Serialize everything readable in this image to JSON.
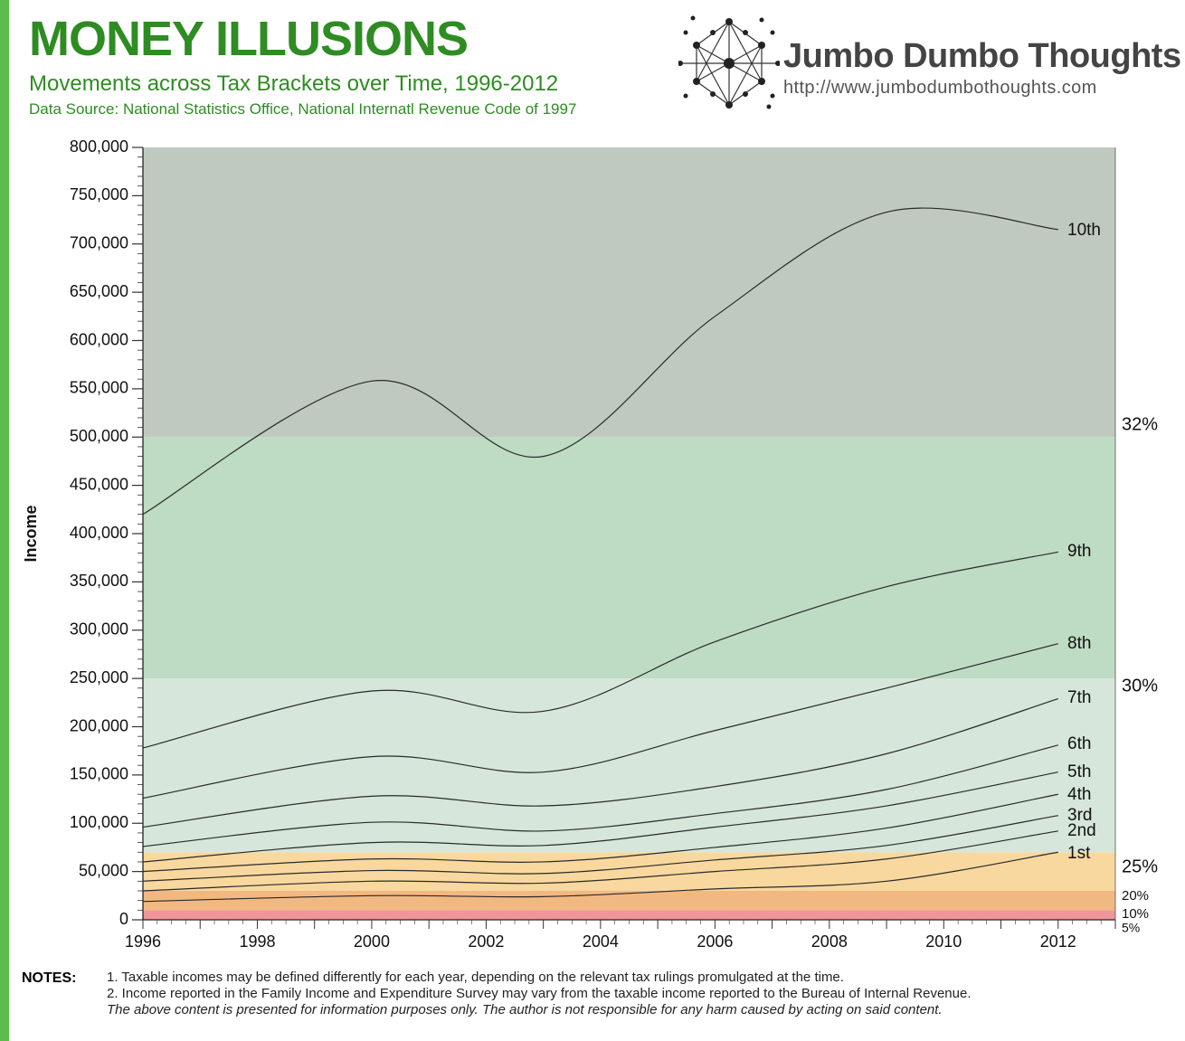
{
  "theme": {
    "accent": "#5cbd4f",
    "title_color": "#2e8c22",
    "text_color": "#111111"
  },
  "header": {
    "title": "MONEY ILLUSIONS",
    "subtitle": "Movements across Tax Brackets over Time, 1996-2012",
    "source": "Data Source: National Statistics Office, National Internatl Revenue Code of 1997"
  },
  "brand": {
    "name": "Jumbo Dumbo Thoughts",
    "url": "http://www.jumbodumbothoughts.com",
    "logo_icon": "network-dots-icon"
  },
  "chart_data": {
    "type": "line",
    "ylabel": "Income",
    "xlabel": "",
    "xlim": [
      1996,
      2013
    ],
    "ylim": [
      0,
      800000
    ],
    "x_ticks": [
      "1996",
      "1998",
      "2000",
      "2002",
      "2004",
      "2006",
      "2008",
      "2010",
      "2012"
    ],
    "y_ticks": [
      "0",
      "50,000",
      "100,000",
      "150,000",
      "200,000",
      "250,000",
      "300,000",
      "350,000",
      "400,000",
      "450,000",
      "500,000",
      "550,000",
      "600,000",
      "650,000",
      "700,000",
      "750,000",
      "800,000"
    ],
    "x": [
      1996,
      2000,
      2003,
      2006,
      2009,
      2012
    ],
    "series": [
      {
        "name": "1st",
        "values": [
          19000,
          25000,
          24000,
          32000,
          40000,
          70000
        ]
      },
      {
        "name": "2nd",
        "values": [
          30000,
          40000,
          38000,
          50000,
          63000,
          92000
        ]
      },
      {
        "name": "3rd",
        "values": [
          40000,
          51000,
          48000,
          62000,
          77000,
          108000
        ]
      },
      {
        "name": "4th",
        "values": [
          50000,
          63000,
          60000,
          75000,
          95000,
          130000
        ]
      },
      {
        "name": "5th",
        "values": [
          60000,
          80000,
          77000,
          96000,
          118000,
          153000
        ]
      },
      {
        "name": "6th",
        "values": [
          76000,
          101000,
          92000,
          110000,
          135000,
          181000
        ]
      },
      {
        "name": "7th",
        "values": [
          96000,
          128000,
          118000,
          138000,
          172000,
          229000
        ]
      },
      {
        "name": "8th",
        "values": [
          126000,
          169000,
          153000,
          196000,
          240000,
          286000
        ]
      },
      {
        "name": "9th",
        "values": [
          178000,
          237000,
          216000,
          288000,
          345000,
          381000
        ]
      },
      {
        "name": "10th",
        "values": [
          420000,
          558000,
          480000,
          625000,
          733000,
          715000
        ]
      }
    ],
    "brackets": [
      {
        "label": "5%",
        "from": 0,
        "to": 10000,
        "color": "#f09599"
      },
      {
        "label": "10%",
        "from": 10000,
        "to": 30000,
        "color": "#f2b882"
      },
      {
        "label": "20%",
        "from": 30000,
        "to": 70000,
        "color": "#f8d89e"
      },
      {
        "label": "25%",
        "from": 70000,
        "to": 250000,
        "color": "#d6e6da"
      },
      {
        "label": "30%",
        "from": 250000,
        "to": 500000,
        "color": "#bedbc3"
      },
      {
        "label": "32%",
        "from": 500000,
        "to": 800000,
        "color": "#c0c9bf"
      }
    ],
    "grid": false,
    "legend": "end-labels-right"
  },
  "notes": {
    "label": "NOTES:",
    "items": [
      "1. Taxable incomes may be defined differently for each year, depending on the relevant tax rulings promulgated at the time.",
      "2. Income reported in the Family Income and Expenditure Survey may vary from the taxable income reported to the Bureau of Internal Revenue."
    ],
    "disclaimer": "The above content is presented for information purposes only. The author is not responsible for any harm caused by acting on said content."
  }
}
